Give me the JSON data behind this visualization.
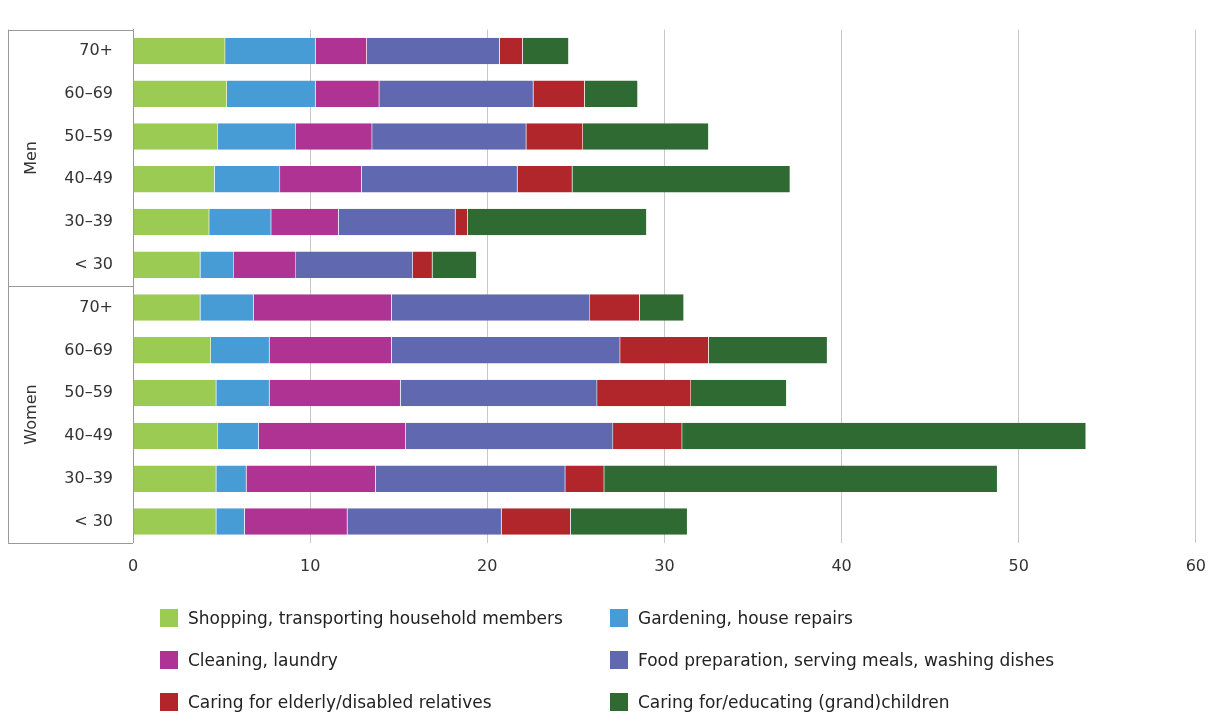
{
  "chart_data": {
    "type": "bar",
    "orientation": "horizontal",
    "stacked": true,
    "categories": [
      "70+",
      "60–69",
      "50–59",
      "40–49",
      "30–39",
      "< 30",
      "70+",
      "60–69",
      "50–59",
      "40–49",
      "30–39",
      "< 30"
    ],
    "annotations": [
      "Men",
      "Women"
    ],
    "series": [
      {
        "name": "Shopping, transporting household members",
        "color": "#9bcb52",
        "values": [
          5.2,
          5.3,
          4.8,
          4.6,
          4.3,
          3.8,
          3.8,
          4.4,
          4.7,
          4.8,
          4.7,
          4.7
        ]
      },
      {
        "name": "Gardening, house repairs",
        "color": "#479cd6",
        "values": [
          5.1,
          5.0,
          4.4,
          3.7,
          3.5,
          1.9,
          3.0,
          3.3,
          3.0,
          2.3,
          1.7,
          1.6
        ]
      },
      {
        "name": "Cleaning, laundry",
        "color": "#ae3393",
        "values": [
          2.9,
          3.6,
          4.3,
          4.6,
          3.8,
          3.5,
          7.8,
          6.9,
          7.4,
          8.3,
          7.3,
          5.8
        ]
      },
      {
        "name": "Food preparation, serving meals, washing dishes",
        "color": "#6068b0",
        "values": [
          7.5,
          8.7,
          8.7,
          8.8,
          6.6,
          6.6,
          11.2,
          12.9,
          11.1,
          11.7,
          10.7,
          8.7
        ]
      },
      {
        "name": "Caring for elderly/disabled relatives",
        "color": "#b0262b",
        "values": [
          1.3,
          2.9,
          3.2,
          3.1,
          0.7,
          1.1,
          2.8,
          5.0,
          5.3,
          3.9,
          2.2,
          3.9
        ]
      },
      {
        "name": "Caring for/educating (grand)children",
        "color": "#2e6a31",
        "values": [
          2.6,
          3.0,
          7.1,
          12.3,
          10.1,
          2.5,
          2.5,
          6.7,
          5.4,
          22.8,
          22.2,
          6.6
        ]
      }
    ],
    "xlim": [
      0,
      60
    ],
    "xticks": [
      0,
      10,
      20,
      30,
      40,
      50,
      60
    ],
    "grid": "x",
    "legend": "bottom"
  }
}
